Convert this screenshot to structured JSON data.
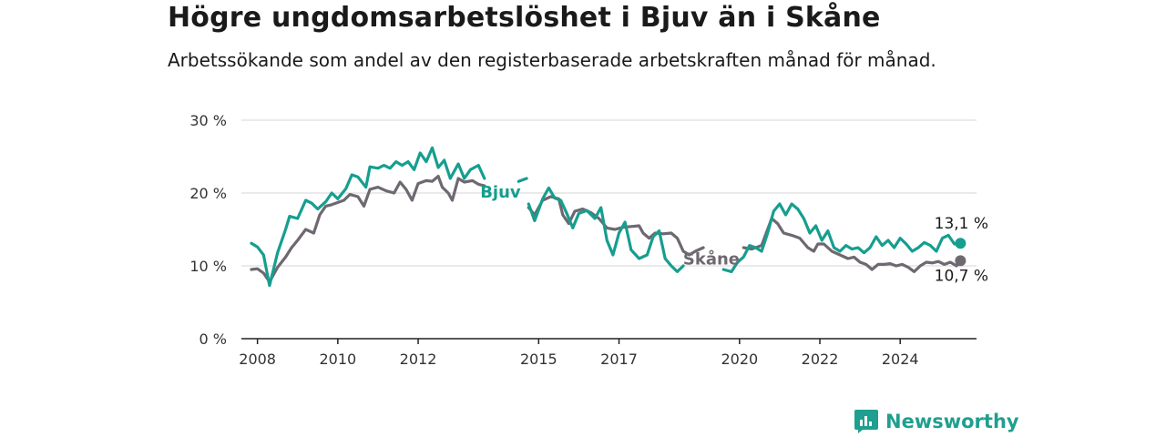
{
  "title": "Högre ungdomsarbetslöshet i Bjuv än i Skåne",
  "subtitle": "Arbetssökande som andel av den registerbaserade arbetskraften månad för månad.",
  "brand": {
    "name": "Newsworthy",
    "icon": "newsworthy-logo-icon",
    "color": "#1f9f8f"
  },
  "chart_data": {
    "type": "line",
    "y_ticks": [
      {
        "value": 0,
        "label": "0 %"
      },
      {
        "value": 10,
        "label": "10 %"
      },
      {
        "value": 20,
        "label": "20 %"
      },
      {
        "value": 30,
        "label": "30 %"
      }
    ],
    "ylim": [
      0,
      30
    ],
    "xlim": [
      2007.6,
      2025.9
    ],
    "x_ticks": [
      {
        "value": 2008,
        "label": "2008"
      },
      {
        "value": 2010,
        "label": "2010"
      },
      {
        "value": 2012,
        "label": "2012"
      },
      {
        "value": 2015,
        "label": "2015"
      },
      {
        "value": 2017,
        "label": "2017"
      },
      {
        "value": 2020,
        "label": "2020"
      },
      {
        "value": 2022,
        "label": "2022"
      },
      {
        "value": 2024,
        "label": "2024"
      }
    ],
    "grid": true,
    "series": [
      {
        "name": "Bjuv",
        "color": "#169e8f",
        "end_label": "13,1 %",
        "segments": [
          [
            [
              2007.85,
              13.1
            ],
            [
              2008.0,
              12.6
            ],
            [
              2008.15,
              11.5
            ],
            [
              2008.3,
              7.3
            ],
            [
              2008.5,
              11.8
            ],
            [
              2008.7,
              15.0
            ],
            [
              2008.8,
              16.8
            ],
            [
              2009.0,
              16.5
            ],
            [
              2009.2,
              19.0
            ],
            [
              2009.35,
              18.6
            ],
            [
              2009.5,
              17.8
            ],
            [
              2009.7,
              18.8
            ],
            [
              2009.85,
              20.0
            ],
            [
              2010.0,
              19.2
            ],
            [
              2010.2,
              20.6
            ],
            [
              2010.35,
              22.5
            ],
            [
              2010.5,
              22.2
            ],
            [
              2010.7,
              20.8
            ],
            [
              2010.8,
              23.6
            ],
            [
              2011.0,
              23.4
            ],
            [
              2011.15,
              23.8
            ],
            [
              2011.3,
              23.4
            ],
            [
              2011.45,
              24.3
            ],
            [
              2011.6,
              23.8
            ],
            [
              2011.75,
              24.3
            ],
            [
              2011.9,
              23.2
            ],
            [
              2012.05,
              25.5
            ],
            [
              2012.2,
              24.3
            ],
            [
              2012.35,
              26.2
            ],
            [
              2012.5,
              23.5
            ],
            [
              2012.65,
              24.5
            ],
            [
              2012.8,
              22.0
            ],
            [
              2013.0,
              24.0
            ],
            [
              2013.15,
              22.0
            ],
            [
              2013.3,
              23.2
            ],
            [
              2013.5,
              23.8
            ],
            [
              2013.65,
              22.0
            ]
          ],
          [
            [
              2014.5,
              21.6
            ],
            [
              2014.7,
              22.0
            ]
          ],
          [
            [
              2014.75,
              18.5
            ],
            [
              2014.9,
              16.2
            ],
            [
              2015.1,
              19.2
            ],
            [
              2015.25,
              20.7
            ],
            [
              2015.4,
              19.3
            ],
            [
              2015.55,
              19.0
            ],
            [
              2015.7,
              17.2
            ],
            [
              2015.85,
              15.2
            ],
            [
              2016.0,
              17.2
            ],
            [
              2016.2,
              17.6
            ],
            [
              2016.4,
              16.5
            ],
            [
              2016.55,
              18.0
            ],
            [
              2016.7,
              13.5
            ],
            [
              2016.85,
              11.5
            ],
            [
              2017.0,
              14.5
            ],
            [
              2017.15,
              16.0
            ],
            [
              2017.3,
              12.2
            ],
            [
              2017.5,
              11.0
            ],
            [
              2017.7,
              11.5
            ],
            [
              2017.85,
              14.0
            ],
            [
              2018.0,
              14.8
            ],
            [
              2018.15,
              11.0
            ],
            [
              2018.3,
              10.0
            ],
            [
              2018.45,
              9.2
            ],
            [
              2018.6,
              10.0
            ]
          ],
          [
            [
              2019.6,
              9.5
            ],
            [
              2019.8,
              9.2
            ],
            [
              2019.95,
              10.5
            ],
            [
              2020.1,
              11.2
            ],
            [
              2020.25,
              12.8
            ],
            [
              2020.4,
              12.5
            ],
            [
              2020.55,
              12.0
            ],
            [
              2020.7,
              14.5
            ],
            [
              2020.85,
              17.5
            ],
            [
              2021.0,
              18.5
            ],
            [
              2021.15,
              17.0
            ],
            [
              2021.3,
              18.5
            ],
            [
              2021.45,
              17.8
            ],
            [
              2021.6,
              16.5
            ],
            [
              2021.75,
              14.5
            ],
            [
              2021.9,
              15.5
            ],
            [
              2022.05,
              13.5
            ],
            [
              2022.2,
              14.8
            ],
            [
              2022.35,
              12.5
            ],
            [
              2022.5,
              12.0
            ],
            [
              2022.65,
              12.8
            ],
            [
              2022.8,
              12.3
            ],
            [
              2022.95,
              12.5
            ],
            [
              2023.1,
              11.8
            ],
            [
              2023.25,
              12.5
            ],
            [
              2023.4,
              14.0
            ],
            [
              2023.55,
              12.8
            ],
            [
              2023.7,
              13.5
            ],
            [
              2023.85,
              12.5
            ],
            [
              2024.0,
              13.8
            ],
            [
              2024.15,
              13.0
            ],
            [
              2024.3,
              12.0
            ],
            [
              2024.45,
              12.5
            ],
            [
              2024.6,
              13.2
            ],
            [
              2024.75,
              12.8
            ],
            [
              2024.9,
              12.0
            ],
            [
              2025.05,
              13.8
            ],
            [
              2025.2,
              14.2
            ],
            [
              2025.35,
              13.0
            ],
            [
              2025.5,
              13.1
            ]
          ]
        ]
      },
      {
        "name": "Skåne",
        "color": "#6e6870",
        "end_label": "10,7 %",
        "segments": [
          [
            [
              2007.85,
              9.5
            ],
            [
              2008.0,
              9.6
            ],
            [
              2008.15,
              9.0
            ],
            [
              2008.3,
              7.8
            ],
            [
              2008.5,
              9.8
            ],
            [
              2008.7,
              11.2
            ],
            [
              2008.85,
              12.5
            ],
            [
              2009.0,
              13.5
            ],
            [
              2009.2,
              15.0
            ],
            [
              2009.4,
              14.5
            ],
            [
              2009.55,
              17.0
            ],
            [
              2009.7,
              18.2
            ],
            [
              2009.85,
              18.4
            ],
            [
              2010.0,
              18.7
            ],
            [
              2010.15,
              19.0
            ],
            [
              2010.3,
              19.8
            ],
            [
              2010.5,
              19.5
            ],
            [
              2010.65,
              18.2
            ],
            [
              2010.8,
              20.5
            ],
            [
              2011.0,
              20.8
            ],
            [
              2011.2,
              20.3
            ],
            [
              2011.4,
              20.0
            ],
            [
              2011.55,
              21.5
            ],
            [
              2011.7,
              20.5
            ],
            [
              2011.85,
              19.0
            ],
            [
              2012.0,
              21.3
            ],
            [
              2012.2,
              21.7
            ],
            [
              2012.35,
              21.6
            ],
            [
              2012.5,
              22.3
            ],
            [
              2012.6,
              20.8
            ],
            [
              2012.75,
              20.0
            ],
            [
              2012.85,
              19.0
            ],
            [
              2013.0,
              22.0
            ],
            [
              2013.15,
              21.5
            ],
            [
              2013.35,
              21.7
            ],
            [
              2013.5,
              21.2
            ],
            [
              2013.65,
              21.0
            ]
          ],
          [
            [
              2014.75,
              18.0
            ],
            [
              2014.9,
              17.0
            ],
            [
              2015.1,
              19.0
            ],
            [
              2015.3,
              19.5
            ],
            [
              2015.5,
              19.2
            ],
            [
              2015.6,
              17.0
            ],
            [
              2015.75,
              15.8
            ],
            [
              2015.9,
              17.5
            ],
            [
              2016.1,
              17.8
            ],
            [
              2016.3,
              17.3
            ],
            [
              2016.5,
              16.5
            ],
            [
              2016.7,
              15.2
            ],
            [
              2016.9,
              15.0
            ],
            [
              2017.1,
              15.3
            ],
            [
              2017.3,
              15.4
            ],
            [
              2017.5,
              15.5
            ],
            [
              2017.6,
              14.5
            ],
            [
              2017.75,
              13.8
            ],
            [
              2017.9,
              14.5
            ],
            [
              2018.1,
              14.4
            ],
            [
              2018.3,
              14.5
            ],
            [
              2018.45,
              13.8
            ],
            [
              2018.6,
              12.0
            ],
            [
              2018.75,
              11.5
            ],
            [
              2018.9,
              12.0
            ],
            [
              2019.1,
              12.5
            ]
          ],
          [
            [
              2020.1,
              12.5
            ],
            [
              2020.3,
              12.3
            ],
            [
              2020.55,
              12.8
            ],
            [
              2020.8,
              16.5
            ],
            [
              2020.95,
              15.8
            ],
            [
              2021.1,
              14.5
            ],
            [
              2021.3,
              14.2
            ],
            [
              2021.5,
              13.8
            ],
            [
              2021.7,
              12.5
            ],
            [
              2021.85,
              12.0
            ],
            [
              2021.95,
              13.0
            ],
            [
              2022.1,
              13.0
            ],
            [
              2022.3,
              12.0
            ],
            [
              2022.5,
              11.5
            ],
            [
              2022.7,
              11.0
            ],
            [
              2022.85,
              11.2
            ],
            [
              2023.0,
              10.5
            ],
            [
              2023.15,
              10.2
            ],
            [
              2023.3,
              9.5
            ],
            [
              2023.45,
              10.2
            ],
            [
              2023.6,
              10.2
            ],
            [
              2023.75,
              10.3
            ],
            [
              2023.9,
              10.0
            ],
            [
              2024.05,
              10.2
            ],
            [
              2024.2,
              9.8
            ],
            [
              2024.35,
              9.2
            ],
            [
              2024.5,
              10.0
            ],
            [
              2024.65,
              10.5
            ],
            [
              2024.8,
              10.4
            ],
            [
              2024.95,
              10.6
            ],
            [
              2025.1,
              10.2
            ],
            [
              2025.25,
              10.5
            ],
            [
              2025.4,
              10.0
            ],
            [
              2025.5,
              10.7
            ]
          ]
        ]
      }
    ]
  }
}
